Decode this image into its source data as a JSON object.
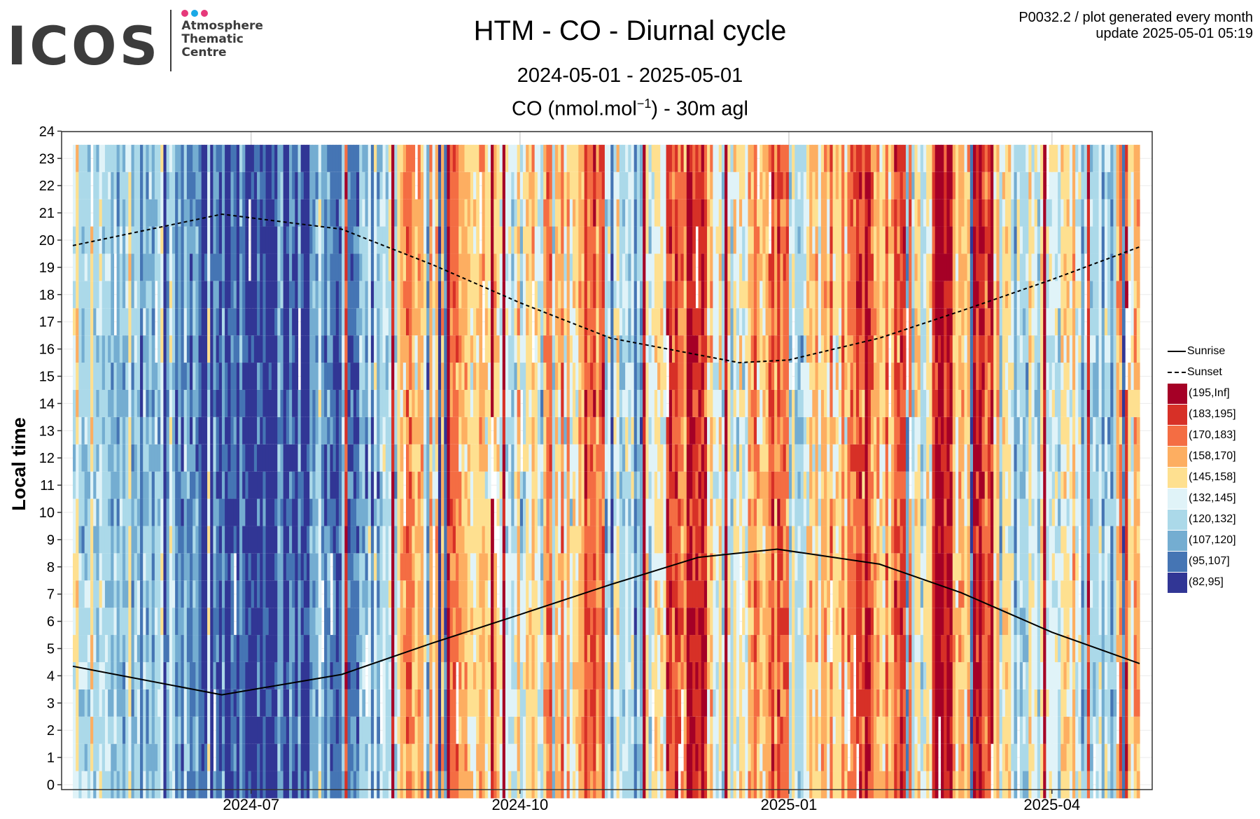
{
  "logo": {
    "word": "ICOS",
    "line1": "Atmosphere",
    "line2": "Thematic",
    "line3": "Centre",
    "dot_colors": [
      "#e6397a",
      "#1aa9e6",
      "#e6397a"
    ]
  },
  "meta": {
    "line1": "P0032.2 / plot generated every month",
    "line2": "update  2025-05-01 05:19"
  },
  "header": {
    "title": "HTM - CO - Diurnal cycle",
    "subtitle": "2024-05-01 - 2025-05-01",
    "variable_prefix": "CO (nmol.mol",
    "variable_exp": "−1",
    "variable_suffix": ") - 30m agl"
  },
  "chart_data": {
    "type": "heatmap",
    "x_start": "2024-05-01",
    "x_end": "2025-05-01",
    "ylabel": "Local time",
    "ylim": [
      0,
      24
    ],
    "y_ticks": [
      "0",
      "1",
      "2",
      "3",
      "4",
      "5",
      "6",
      "7",
      "8",
      "9",
      "10",
      "11",
      "12",
      "13",
      "14",
      "15",
      "16",
      "17",
      "18",
      "19",
      "20",
      "21",
      "22",
      "23",
      "24"
    ],
    "x_ticks": [
      {
        "date": "2024-07-01",
        "label": "2024-07"
      },
      {
        "date": "2024-10-01",
        "label": "2024-10"
      },
      {
        "date": "2025-01-01",
        "label": "2025-01"
      },
      {
        "date": "2025-04-01",
        "label": "2025-04"
      }
    ],
    "hours_shown": [
      0,
      1,
      2,
      3,
      4,
      5,
      6,
      7,
      8,
      9,
      10,
      11,
      12,
      13,
      14,
      15,
      16,
      17,
      18,
      19,
      20,
      21,
      22,
      23
    ],
    "value_bins": [
      "(195,Inf]",
      "(183,195]",
      "(170,183]",
      "(158,170]",
      "(145,158]",
      "(132,145]",
      "(120,132]",
      "(107,120]",
      "(95,107]",
      "(82,95]"
    ],
    "bin_colors": [
      "#a50026",
      "#d73027",
      "#f46d43",
      "#fdae61",
      "#fee090",
      "#e0f3f8",
      "#abd9e9",
      "#74add1",
      "#4575b4",
      "#313695"
    ],
    "daily_level_by_week": [
      {
        "week_start": "2024-05-01",
        "level": 5
      },
      {
        "week_start": "2024-05-08",
        "level": 6
      },
      {
        "week_start": "2024-05-15",
        "level": 6
      },
      {
        "week_start": "2024-05-22",
        "level": 7
      },
      {
        "week_start": "2024-05-29",
        "level": 7
      },
      {
        "week_start": "2024-06-05",
        "level": 7
      },
      {
        "week_start": "2024-06-12",
        "level": 8
      },
      {
        "week_start": "2024-06-19",
        "level": 8
      },
      {
        "week_start": "2024-06-26",
        "level": 8
      },
      {
        "week_start": "2024-07-03",
        "level": 9
      },
      {
        "week_start": "2024-07-10",
        "level": 8
      },
      {
        "week_start": "2024-07-17",
        "level": 8
      },
      {
        "week_start": "2024-07-24",
        "level": 8
      },
      {
        "week_start": "2024-07-31",
        "level": 7
      },
      {
        "week_start": "2024-08-07",
        "level": 6
      },
      {
        "week_start": "2024-08-14",
        "level": 5
      },
      {
        "week_start": "2024-08-21",
        "level": 3
      },
      {
        "week_start": "2024-08-28",
        "level": 4
      },
      {
        "week_start": "2024-09-04",
        "level": 2
      },
      {
        "week_start": "2024-09-11",
        "level": 4
      },
      {
        "week_start": "2024-09-18",
        "level": 4
      },
      {
        "week_start": "2024-09-25",
        "level": 5
      },
      {
        "week_start": "2024-10-02",
        "level": 5
      },
      {
        "week_start": "2024-10-09",
        "level": 3
      },
      {
        "week_start": "2024-10-16",
        "level": 4
      },
      {
        "week_start": "2024-10-23",
        "level": 2
      },
      {
        "week_start": "2024-10-30",
        "level": 5
      },
      {
        "week_start": "2024-11-06",
        "level": 6
      },
      {
        "week_start": "2024-11-13",
        "level": 5
      },
      {
        "week_start": "2024-11-20",
        "level": 2
      },
      {
        "week_start": "2024-11-27",
        "level": 0
      },
      {
        "week_start": "2024-12-04",
        "level": 4
      },
      {
        "week_start": "2024-12-11",
        "level": 5
      },
      {
        "week_start": "2024-12-18",
        "level": 3
      },
      {
        "week_start": "2024-12-25",
        "level": 2
      },
      {
        "week_start": "2025-01-01",
        "level": 5
      },
      {
        "week_start": "2025-01-08",
        "level": 4
      },
      {
        "week_start": "2025-01-15",
        "level": 3
      },
      {
        "week_start": "2025-01-22",
        "level": 0
      },
      {
        "week_start": "2025-01-29",
        "level": 3
      },
      {
        "week_start": "2025-02-05",
        "level": 2
      },
      {
        "week_start": "2025-02-12",
        "level": 5
      },
      {
        "week_start": "2025-02-19",
        "level": 0
      },
      {
        "week_start": "2025-02-26",
        "level": 3
      },
      {
        "week_start": "2025-03-05",
        "level": 1
      },
      {
        "week_start": "2025-03-12",
        "level": 5
      },
      {
        "week_start": "2025-03-19",
        "level": 6
      },
      {
        "week_start": "2025-03-26",
        "level": 5
      },
      {
        "week_start": "2025-04-02",
        "level": 4
      },
      {
        "week_start": "2025-04-09",
        "level": 6
      },
      {
        "week_start": "2025-04-16",
        "level": 6
      },
      {
        "week_start": "2025-04-23",
        "level": 3
      }
    ],
    "sun_lines": [
      {
        "name": "Sunrise",
        "style": "solid",
        "points": [
          {
            "date": "2024-05-01",
            "hour": 4.35
          },
          {
            "date": "2024-06-21",
            "hour": 3.3
          },
          {
            "date": "2024-08-01",
            "hour": 4.05
          },
          {
            "date": "2024-09-01",
            "hour": 5.2
          },
          {
            "date": "2024-10-01",
            "hour": 6.25
          },
          {
            "date": "2024-11-01",
            "hour": 7.35
          },
          {
            "date": "2024-12-01",
            "hour": 8.35
          },
          {
            "date": "2024-12-28",
            "hour": 8.65
          },
          {
            "date": "2025-02-01",
            "hour": 8.1
          },
          {
            "date": "2025-03-01",
            "hour": 7.05
          },
          {
            "date": "2025-04-01",
            "hour": 5.6
          },
          {
            "date": "2025-05-01",
            "hour": 4.45
          }
        ]
      },
      {
        "name": "Sunset",
        "style": "dashed",
        "points": [
          {
            "date": "2024-05-01",
            "hour": 19.8
          },
          {
            "date": "2024-06-21",
            "hour": 20.95
          },
          {
            "date": "2024-08-01",
            "hour": 20.4
          },
          {
            "date": "2024-09-01",
            "hour": 19.1
          },
          {
            "date": "2024-10-01",
            "hour": 17.7
          },
          {
            "date": "2024-11-01",
            "hour": 16.4
          },
          {
            "date": "2024-12-15",
            "hour": 15.5
          },
          {
            "date": "2025-01-01",
            "hour": 15.6
          },
          {
            "date": "2025-02-01",
            "hour": 16.4
          },
          {
            "date": "2025-03-01",
            "hour": 17.4
          },
          {
            "date": "2025-04-01",
            "hour": 18.55
          },
          {
            "date": "2025-05-01",
            "hour": 19.75
          }
        ]
      }
    ],
    "legend": [
      {
        "label": "Sunrise",
        "kind": "line-solid"
      },
      {
        "label": "Sunset",
        "kind": "line-dashed"
      }
    ],
    "legend_position": "right"
  }
}
